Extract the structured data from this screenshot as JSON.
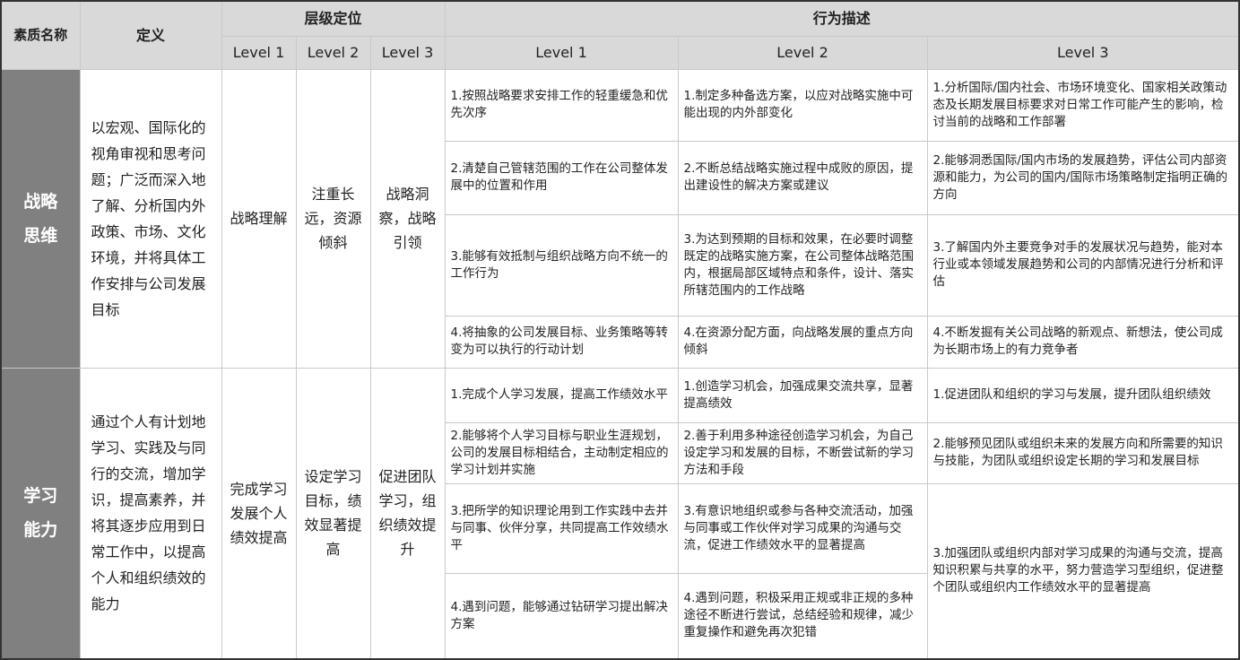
{
  "header": {
    "competency": "素质名称",
    "definition": "定义",
    "level_group": "层级定位",
    "behavior_group": "行为描述",
    "levels": [
      "Level 1",
      "Level 2",
      "Level 3"
    ]
  },
  "colors": {
    "header_bg": "#d9d9d9",
    "competency_bg": "#808080",
    "border": "#c9c9c9"
  },
  "rows": [
    {
      "competency": "战略思维",
      "definition": "以宏观、国际化的视角审视和思考问题；广泛而深入地了解、分析国内外政策、市场、文化环境，并将具体工作安排与公司发展目标",
      "levels": [
        "战略理解",
        "注重长远，资源倾斜",
        "战略洞察，战略引领"
      ],
      "behaviors": [
        [
          "1.按照战略要求安排工作的轻重缓急和优先次序",
          "1.制定多种备选方案，以应对战略实施中可能出现的内外部变化",
          "1.分析国际/国内社会、市场环境变化、国家相关政策动态及长期发展目标要求对日常工作可能产生的影响，检讨当前的战略和工作部署"
        ],
        [
          "2.清楚自己管辖范围的工作在公司整体发展中的位置和作用",
          "2.不断总结战略实施过程中成败的原因，提出建设性的解决方案或建议",
          "2.能够洞悉国际/国内市场的发展趋势，评估公司内部资源和能力，为公司的国内/国际市场策略制定指明正确的方向"
        ],
        [
          "3.能够有效抵制与组织战略方向不统一的工作行为",
          "3.为达到预期的目标和效果，在必要时调整既定的战略实施方案，在公司整体战略范围内，根据局部区域特点和条件，设计、落实所辖范围内的工作战略",
          "3.了解国内外主要竞争对手的发展状况与趋势，能对本行业或本领域发展趋势和公司的内部情况进行分析和评估"
        ],
        [
          "4.将抽象的公司发展目标、业务策略等转变为可以执行的行动计划",
          "4.在资源分配方面，向战略发展的重点方向倾斜",
          "4.不断发掘有关公司战略的新观点、新想法，使公司成为长期市场上的有力竞争者"
        ]
      ]
    },
    {
      "competency": "学习能力",
      "definition": "通过个人有计划地学习、实践及与同行的交流，增加学识，提高素养，并将其逐步应用到日常工作中，以提高个人和组织绩效的能力",
      "levels": [
        "完成学习发展个人绩效提高",
        "设定学习目标，绩效显著提高",
        "促进团队学习，组织绩效提升"
      ],
      "behaviors": [
        [
          "1.完成个人学习发展，提高工作绩效水平",
          "1.创造学习机会，加强成果交流共享，显著提高绩效",
          "1.促进团队和组织的学习与发展，提升团队组织绩效"
        ],
        [
          "2.能够将个人学习目标与职业生涯规划，公司的发展目标相结合，主动制定相应的学习计划并实施",
          "2.善于利用多种途径创造学习机会，为自己设定学习和发展的目标，不断尝试新的学习方法和手段",
          "2.能够预见团队或组织未来的发展方向和所需要的知识与技能，为团队或组织设定长期的学习和发展目标"
        ],
        [
          "3.把所学的知识理论用到工作实践中去并与同事、伙伴分享，共同提高工作效绩水平",
          "3.有意识地组织或参与各种交流活动，加强与同事或工作伙伴对学习成果的沟通与交流，促进工作绩效水平的显著提高",
          "3.加强团队或组织内部对学习成果的沟通与交流，提高知识积累与共享的水平，努力营造学习型组织，促进整个团队或组织内工作绩效水平的显著提高"
        ],
        [
          "4.遇到问题，能够通过钻研学习提出解决方案",
          "4.遇到问题，积极采用正规或非正规的多种途径不断进行尝试，总结经验和规律，减少重复操作和避免再次犯错",
          null
        ]
      ]
    }
  ]
}
